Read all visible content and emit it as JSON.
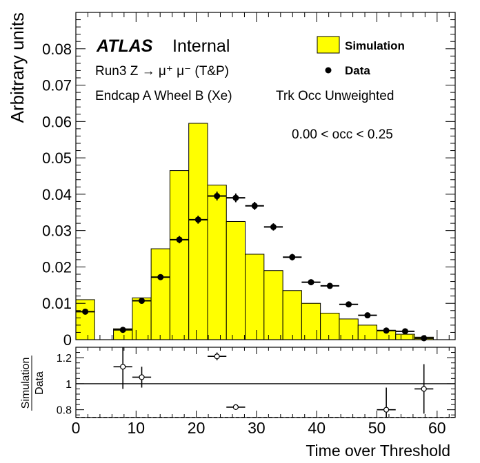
{
  "chart_data": [
    {
      "type": "histogram",
      "ylabel": "Arbitrary units",
      "xlim": [
        0,
        63
      ],
      "ylim": [
        0,
        0.09
      ],
      "yticks": [
        "0",
        "0.01",
        "0.02",
        "0.03",
        "0.04",
        "0.05",
        "0.06",
        "0.07",
        "0.08"
      ],
      "ytick_values": [
        0,
        0.01,
        0.02,
        0.03,
        0.04,
        0.05,
        0.06,
        0.07,
        0.08
      ],
      "annotations": {
        "experiment": "ATLAS",
        "status": "Internal",
        "line1": "Run3 Z → μ⁺ μ⁻ (T&P)",
        "line2_left": "Endcap A Wheel B (Xe)",
        "line2_right": "Trk Occ Unweighted",
        "occ_range": "0.00 < occ < 0.25"
      },
      "legend": {
        "placement": "top-right",
        "simulation": "Simulation",
        "data": "Data"
      },
      "bin_edges": [
        0,
        3.12,
        6.25,
        9.38,
        12.5,
        15.62,
        18.75,
        21.88,
        25,
        28.12,
        31.25,
        34.38,
        37.5,
        40.62,
        43.75,
        46.88,
        50,
        53.12,
        56.25,
        59.38,
        62.5
      ],
      "simulation": [
        0.011,
        0,
        0.003,
        0.0115,
        0.025,
        0.0465,
        0.0595,
        0.0425,
        0.0325,
        0.0235,
        0.019,
        0.0135,
        0.01,
        0.0073,
        0.0057,
        0.004,
        0.0025,
        0.0015,
        0.0007,
        0
      ],
      "data_x": [
        1.56,
        7.81,
        10.94,
        14.06,
        17.19,
        20.31,
        23.44,
        26.56,
        29.69,
        32.81,
        35.94,
        39.06,
        42.19,
        45.31,
        48.44,
        51.56,
        54.69,
        57.81
      ],
      "data_y": [
        0.0077,
        0.0027,
        0.0107,
        0.0172,
        0.0275,
        0.033,
        0.0395,
        0.039,
        0.0368,
        0.031,
        0.0227,
        0.0158,
        0.0148,
        0.0097,
        0.0067,
        0.0025,
        0.0023,
        0.0004
      ],
      "data_yerr": [
        0.0005,
        0.0003,
        0.0006,
        0.0008,
        0.001,
        0.0011,
        0.0012,
        0.0012,
        0.0011,
        0.001,
        0.0009,
        0.0007,
        0.0007,
        0.0006,
        0.0005,
        0.0003,
        0.0003,
        0.0002
      ]
    },
    {
      "type": "scatter",
      "ylabel_num": "Simulation",
      "ylabel_den": "Data",
      "xlabel": "Time over Threshold",
      "xlim": [
        0,
        63
      ],
      "ylim": [
        0.74,
        1.28
      ],
      "yticks": [
        "0.8",
        "1",
        "1.2"
      ],
      "ytick_values": [
        0.8,
        1.0,
        1.2
      ],
      "xticks": [
        "0",
        "10",
        "20",
        "30",
        "40",
        "50",
        "60"
      ],
      "xtick_values": [
        0,
        10,
        20,
        30,
        40,
        50,
        60
      ],
      "reference_line": 1.0,
      "x": [
        7.81,
        10.94,
        23.44,
        26.56,
        51.56,
        57.81
      ],
      "y": [
        1.13,
        1.05,
        1.21,
        0.82,
        0.8,
        0.96
      ],
      "yerr": [
        0.17,
        0.08,
        0.03,
        0.02,
        0.17,
        0.19
      ]
    }
  ]
}
